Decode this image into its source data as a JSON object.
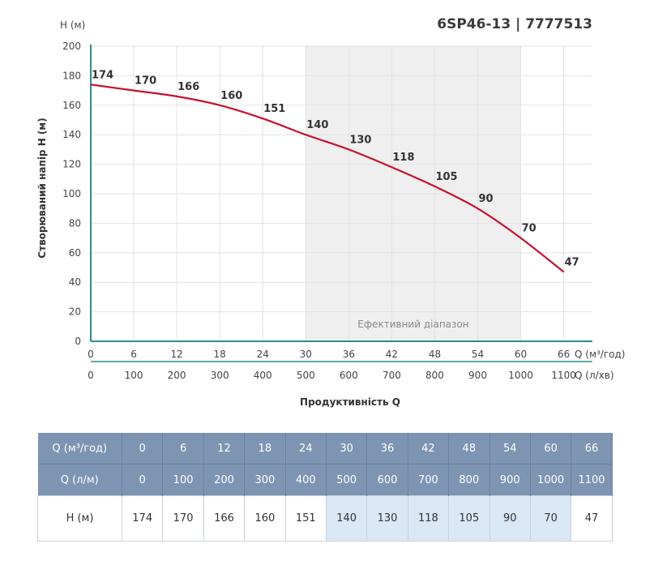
{
  "model_title": "6SP46-13 | 7777513",
  "chart_data": {
    "type": "line",
    "title": "6SP46-13 | 7777513",
    "ylabel": "Створюваний напір H (м)",
    "y_unit_label": "H (м)",
    "xlabel": "Продуктивність Q",
    "x_unit_label_m3": "Q (м³/год)",
    "x_unit_label_lmin": "Q (л/хв)",
    "ylim": [
      0,
      200
    ],
    "xlim": [
      0,
      70
    ],
    "y_ticks": [
      0,
      20,
      40,
      60,
      80,
      100,
      120,
      140,
      160,
      180,
      200
    ],
    "x_ticks_m3": [
      0,
      6,
      12,
      18,
      24,
      30,
      36,
      42,
      48,
      54,
      60,
      66
    ],
    "x_ticks_lmin": [
      0,
      100,
      200,
      300,
      400,
      500,
      600,
      700,
      800,
      900,
      1000,
      1100
    ],
    "series": [
      {
        "color": "#c8102e",
        "x": [
          0,
          6,
          12,
          18,
          24,
          30,
          36,
          42,
          48,
          54,
          60,
          66
        ],
        "values": [
          174,
          170,
          166,
          160,
          151,
          140,
          130,
          118,
          105,
          90,
          70,
          47
        ]
      }
    ],
    "efficient_range": {
      "from": 30,
      "to": 60,
      "label": "Ефективний діапазон",
      "color": "#efefef"
    },
    "grid": true,
    "axis_color": "#2e8c8c"
  },
  "table": {
    "row_q_label": "Q (м³/год)",
    "row_ql_label": "Q (л/м)",
    "row_h_label": "H (м)",
    "q_m3": [
      "0",
      "6",
      "12",
      "18",
      "24",
      "30",
      "36",
      "42",
      "48",
      "54",
      "60",
      "66"
    ],
    "q_lmin": [
      "0",
      "100",
      "200",
      "300",
      "400",
      "500",
      "600",
      "700",
      "800",
      "900",
      "1000",
      "1100"
    ],
    "h": [
      "174",
      "170",
      "166",
      "160",
      "151",
      "140",
      "130",
      "118",
      "105",
      "90",
      "70",
      "47"
    ],
    "efficient_columns": [
      5,
      6,
      7,
      8,
      9,
      10
    ]
  }
}
